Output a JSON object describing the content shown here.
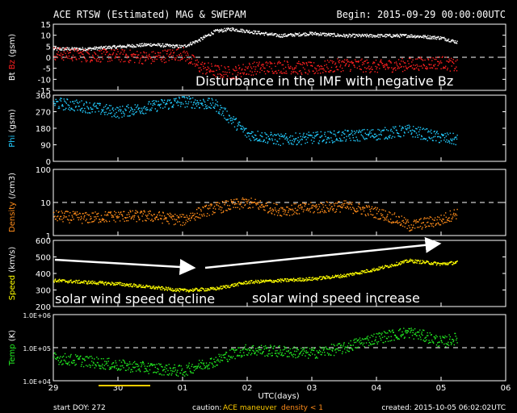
{
  "header": {
    "title": "ACE RTSW (Estimated) MAG & SWEPAM",
    "begin": "Begin: 2015-09-29 00:00:00UTC"
  },
  "footer": {
    "start_doy": "start DOY: 272",
    "caution_label": "caution:",
    "caution_ace": "ACE maneuver",
    "caution_density": "density < 1",
    "created": "created: 2015-10-05 06:02:02UTC",
    "xlabel": "UTC(days)"
  },
  "annotations": {
    "imf_disturbance": "Disturbance in the IMF with negative Bz",
    "speed_decline": "solar wind speed decline",
    "speed_increase": "solar wind speed increase"
  },
  "colors": {
    "bt": "#ffffff",
    "bz": "#ff2020",
    "phi": "#22ccff",
    "density": "#ff8c1a",
    "speed": "#ffff00",
    "temp": "#22ee22",
    "caution": "#ffcc00",
    "axis": "#ffffff"
  },
  "chart_data": [
    {
      "type": "line",
      "panel": "mag",
      "ylabel_parts": [
        "Bt",
        "Bz",
        "(gsm)"
      ],
      "ylim": [
        -15,
        15
      ],
      "yticks": [
        "15",
        "10",
        "5",
        "0",
        "-5",
        "-10",
        "-15"
      ],
      "grid": "dashed line at 0",
      "x": [
        "2015-09-29 00:00",
        "2015-09-29 12:00",
        "2015-09-30 00:00",
        "2015-09-30 12:00",
        "2015-10-01 00:00",
        "2015-10-01 06:00",
        "2015-10-01 12:00",
        "2015-10-01 18:00",
        "2015-10-02 00:00",
        "2015-10-02 12:00",
        "2015-10-03 00:00",
        "2015-10-03 12:00",
        "2015-10-04 00:00",
        "2015-10-04 12:00",
        "2015-10-05 00:00",
        "2015-10-05 06:00"
      ],
      "series": [
        {
          "name": "Bt",
          "values": [
            4,
            4,
            5,
            6,
            5,
            8,
            12,
            13,
            12,
            10,
            11,
            10,
            10,
            10,
            9,
            7
          ]
        },
        {
          "name": "Bz",
          "values": [
            2,
            1,
            1,
            0,
            2,
            -4,
            -6,
            -7,
            -5,
            -4,
            -5,
            -3,
            -4,
            -3,
            -2,
            -4
          ]
        }
      ]
    },
    {
      "type": "scatter",
      "panel": "phi",
      "ylabel_parts": [
        "Phi",
        "(gsm)"
      ],
      "ylim": [
        0,
        360
      ],
      "yticks": [
        "360",
        "270",
        "180",
        "90",
        "0"
      ],
      "x": [
        "2015-09-29 00:00",
        "2015-09-29 12:00",
        "2015-09-30 00:00",
        "2015-09-30 12:00",
        "2015-10-01 00:00",
        "2015-10-01 12:00",
        "2015-10-02 00:00",
        "2015-10-02 12:00",
        "2015-10-03 00:00",
        "2015-10-03 12:00",
        "2015-10-04 00:00",
        "2015-10-04 12:00",
        "2015-10-05 00:00",
        "2015-10-05 06:00"
      ],
      "series": [
        {
          "name": "Phi",
          "values": [
            320,
            300,
            270,
            300,
            330,
            310,
            150,
            120,
            130,
            140,
            150,
            170,
            130,
            120
          ]
        }
      ]
    },
    {
      "type": "scatter",
      "panel": "density",
      "ylabel_parts": [
        "Density",
        "(/cm3)"
      ],
      "yscale": "log",
      "ylim": [
        1,
        100
      ],
      "yticks": [
        "100",
        "10",
        "1"
      ],
      "grid": "dashed line at 10",
      "x": [
        "2015-09-29 00:00",
        "2015-09-29 12:00",
        "2015-09-30 00:00",
        "2015-09-30 12:00",
        "2015-10-01 00:00",
        "2015-10-01 12:00",
        "2015-10-02 00:00",
        "2015-10-02 12:00",
        "2015-10-03 00:00",
        "2015-10-03 12:00",
        "2015-10-04 00:00",
        "2015-10-04 12:00",
        "2015-10-05 00:00",
        "2015-10-05 06:00"
      ],
      "series": [
        {
          "name": "Density",
          "values": [
            4,
            3.5,
            4,
            4,
            3,
            7,
            10,
            6,
            7,
            8,
            5,
            2,
            3,
            5
          ]
        }
      ]
    },
    {
      "type": "scatter",
      "panel": "speed",
      "ylabel_parts": [
        "Speed",
        "(km/s)"
      ],
      "ylim": [
        200,
        600
      ],
      "yticks": [
        "600",
        "500",
        "400",
        "300",
        "200"
      ],
      "x": [
        "2015-09-29 00:00",
        "2015-09-29 12:00",
        "2015-09-30 00:00",
        "2015-09-30 12:00",
        "2015-10-01 00:00",
        "2015-10-01 12:00",
        "2015-10-02 00:00",
        "2015-10-02 12:00",
        "2015-10-03 00:00",
        "2015-10-03 12:00",
        "2015-10-04 00:00",
        "2015-10-04 12:00",
        "2015-10-05 00:00",
        "2015-10-05 06:00"
      ],
      "series": [
        {
          "name": "Speed",
          "values": [
            360,
            350,
            340,
            320,
            300,
            310,
            350,
            360,
            370,
            390,
            430,
            480,
            460,
            470
          ]
        }
      ]
    },
    {
      "type": "scatter",
      "panel": "temp",
      "ylabel_parts": [
        "Temp",
        "(K)"
      ],
      "yscale": "log",
      "ylim": [
        10000,
        1000000
      ],
      "yticks": [
        "1.0E+06",
        "1.0E+05",
        "1.0E+04"
      ],
      "grid": "dashed line at 1.0E+05",
      "x": [
        "2015-09-29 00:00",
        "2015-09-29 12:00",
        "2015-09-30 00:00",
        "2015-09-30 12:00",
        "2015-10-01 00:00",
        "2015-10-01 12:00",
        "2015-10-02 00:00",
        "2015-10-02 12:00",
        "2015-10-03 00:00",
        "2015-10-03 12:00",
        "2015-10-04 00:00",
        "2015-10-04 12:00",
        "2015-10-05 00:00",
        "2015-10-05 06:00"
      ],
      "series": [
        {
          "name": "Temp",
          "values": [
            50000,
            40000,
            30000,
            25000,
            20000,
            40000,
            90000,
            80000,
            70000,
            100000,
            200000,
            300000,
            150000,
            200000
          ]
        }
      ]
    }
  ],
  "x_axis": {
    "ticks": [
      "29",
      "30",
      "01",
      "02",
      "03",
      "04",
      "05",
      "06"
    ],
    "range": [
      "2015-09-29 00:00",
      "2015-10-06 00:00"
    ]
  }
}
